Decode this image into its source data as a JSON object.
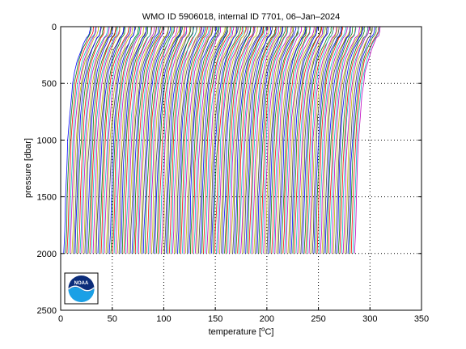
{
  "chart_data": {
    "type": "line",
    "title": "WMO ID 5906018, internal ID 7701, 06–Jan–2024",
    "xlabel": "temperature [",
    "xlabel_unit": "o",
    "xlabel_tail": "C]",
    "ylabel": "pressure [dbar]",
    "xlim": [
      0,
      350
    ],
    "ylim": [
      2500,
      0
    ],
    "y_reversed": true,
    "grid": true,
    "xticks": [
      "0",
      "50",
      "100",
      "150",
      "200",
      "250",
      "300",
      "350"
    ],
    "yticks": [
      "0",
      "500",
      "1000",
      "1500",
      "2000",
      "2500"
    ],
    "profile_count": 180,
    "first_deep_temperature": 3,
    "last_deep_temperature": 285,
    "offset_step": 1.6,
    "profile_shape": {
      "pressure": [
        0,
        20,
        40,
        60,
        80,
        100,
        150,
        200,
        300,
        400,
        500,
        600,
        800,
        1000,
        1200,
        1500,
        1800,
        2000
      ],
      "temperature_above_deep": [
        26,
        25.8,
        25.5,
        25.0,
        24.0,
        22.0,
        19.5,
        17.0,
        13.0,
        10.5,
        8.8,
        7.5,
        5.5,
        4.2,
        3.2,
        2.0,
        0.9,
        0.0
      ]
    },
    "colors": [
      "#0000ff",
      "#008000",
      "#ff0000",
      "#00bfbf",
      "#bf00bf",
      "#bfbf00",
      "#404040"
    ],
    "logo_text": "NOAA"
  }
}
